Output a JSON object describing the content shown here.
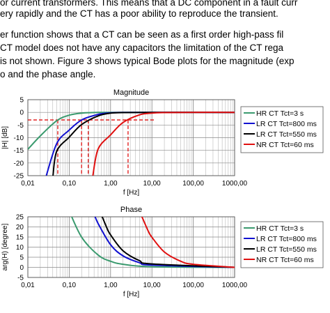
{
  "text": {
    "line1": "or current transformers. This means that a DC component in a fault curr",
    "line2": "ery rapidly and the CT has a poor ability to reproduce the transient.",
    "line3": "er function shows that a CT can be seen as a first order high-pass fil",
    "line4": "CT model does not have any capacitors the limitation of the CT rega",
    "line5": "is not shown. Figure 3 shows typical Bode plots for the magnitude (exp",
    "line6": "o and the phase angle."
  },
  "chart_data": [
    {
      "type": "line",
      "title": "Magnitude",
      "xlabel": "f [Hz]",
      "ylabel": "|H| [dB]",
      "xscale": "log",
      "xlim": [
        0.01,
        1000
      ],
      "ylim": [
        -25,
        5
      ],
      "xticks": [
        "0,01",
        "0,10",
        "1,00",
        "10,00",
        "100,00",
        "1000,00"
      ],
      "yticks": [
        "5",
        "0",
        "-5",
        "-10",
        "-15",
        "-20",
        "-25"
      ],
      "grid": true,
      "legend": "right",
      "series": [
        {
          "name": "HR CT Tct=3 s",
          "color": "#3a9a6e",
          "cutoff_hz": 0.053,
          "x": [
            0.01,
            0.02,
            0.05,
            0.1,
            0.2,
            0.5,
            1,
            10,
            1000
          ],
          "y": [
            -14.6,
            -9.3,
            -3.3,
            -1.1,
            -0.3,
            -0.05,
            0,
            0,
            0
          ]
        },
        {
          "name": "LR CT Tct=800 ms",
          "color": "#1010d0",
          "cutoff_hz": 0.199,
          "x": [
            0.0279,
            0.05,
            0.1,
            0.2,
            0.5,
            1,
            2,
            10,
            1000
          ],
          "y": [
            -25,
            -12.3,
            -7.0,
            -3.0,
            -0.8,
            -0.2,
            -0.05,
            0,
            0
          ]
        },
        {
          "name": "LR CT Tct=550 ms",
          "color": "#000000",
          "cutoff_hz": 0.289,
          "x": [
            0.0406,
            0.05,
            0.1,
            0.2,
            0.5,
            1,
            2,
            10,
            1000
          ],
          "y": [
            -25,
            -15.3,
            -9.8,
            -4.8,
            -1.4,
            -0.3,
            -0.1,
            0,
            0
          ]
        },
        {
          "name": "NR CT Tct=60 ms",
          "color": "#e01010",
          "cutoff_hz": 2.65,
          "x": [
            0.373,
            0.5,
            1,
            2,
            5,
            10,
            20,
            100,
            1000
          ],
          "y": [
            -25,
            -14.5,
            -8.9,
            -4.0,
            -1.0,
            -0.3,
            -0.1,
            0,
            0
          ]
        }
      ],
      "annotations": [
        {
          "label": "-3 dB",
          "y": -3,
          "style": "dashed red horizontal"
        },
        {
          "label": "cutoff markers",
          "x": [
            0.053,
            0.199,
            0.289,
            2.65
          ],
          "style": "dashed red vertical"
        }
      ]
    },
    {
      "type": "line",
      "title": "Phase",
      "xlabel": "f [Hz]",
      "ylabel": "arg(H) [degree]",
      "xscale": "log",
      "xlim": [
        0.01,
        1000
      ],
      "ylim": [
        -5,
        25
      ],
      "xticks": [
        "0,01",
        "0,10",
        "1,00",
        "10,00",
        "100,00",
        "1000,00"
      ],
      "yticks": [
        "25",
        "20",
        "15",
        "10",
        "5",
        "0",
        "-5"
      ],
      "grid": true,
      "legend": "right",
      "series": [
        {
          "name": "HR CT Tct=3 s",
          "color": "#3a9a6e",
          "x": [
            0.1,
            0.2,
            0.5,
            1,
            2,
            10,
            1000
          ],
          "y": [
            27.9,
            14.9,
            6.1,
            3.0,
            1.5,
            0.3,
            0
          ]
        },
        {
          "name": "LR CT Tct=800 ms",
          "color": "#1010d0",
          "x": [
            0.4,
            0.5,
            1,
            2,
            5,
            10,
            1000
          ],
          "y": [
            26.4,
            21.7,
            11.2,
            5.7,
            2.3,
            1.1,
            0
          ]
        },
        {
          "name": "LR CT Tct=550 ms",
          "color": "#000000",
          "x": [
            0.5,
            0.8,
            1,
            2,
            5,
            10,
            1000
          ],
          "y": [
            30.0,
            19.9,
            16.1,
            8.2,
            3.3,
            1.7,
            0
          ]
        },
        {
          "name": "NR CT Tct=60 ms",
          "color": "#e01010",
          "x": [
            5,
            8,
            10,
            20,
            50,
            100,
            1000
          ],
          "y": [
            27.9,
            18.3,
            14.9,
            7.6,
            3.0,
            1.5,
            0
          ]
        }
      ]
    }
  ]
}
